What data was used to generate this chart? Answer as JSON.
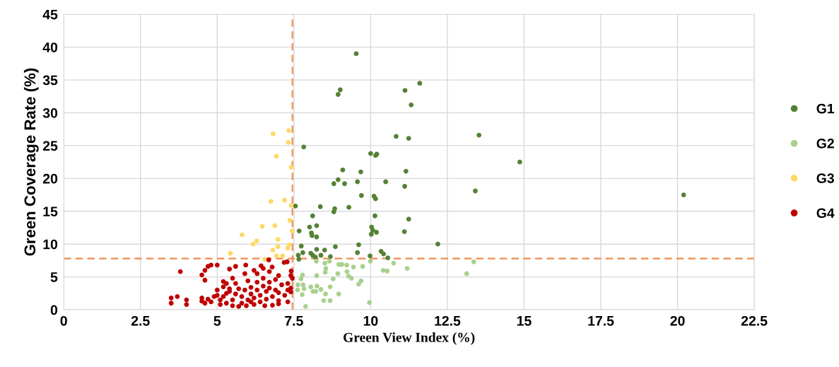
{
  "chart_data": {
    "type": "scatter",
    "xlabel": "Green View Index (%)",
    "ylabel": "Green Coverage Rate (%)",
    "xlim": [
      0,
      22.5
    ],
    "ylim": [
      0,
      45
    ],
    "xticks": [
      0,
      2.5,
      5,
      7.5,
      10,
      12.5,
      15,
      17.5,
      20,
      22.5
    ],
    "yticks": [
      0,
      5,
      10,
      15,
      20,
      25,
      30,
      35,
      40,
      45
    ],
    "grid": true,
    "legend": "right",
    "marker": "circle",
    "ref_lines": [
      {
        "axis": "x",
        "value": 7.45,
        "color": "#f08a4b",
        "line_style": "dashed"
      },
      {
        "axis": "y",
        "value": 7.8,
        "color": "#f08a4b",
        "line_style": "dashed"
      }
    ],
    "series": [
      {
        "name": "G1",
        "color": "#548235",
        "x": [
          9.53,
          9.01,
          8.94,
          11.12,
          11.6,
          11.32,
          13.53,
          14.86,
          13.41,
          20.2,
          12.19,
          7.82,
          10.83,
          11.24,
          10.0,
          10.2,
          10.16,
          9.09,
          9.68,
          11.15,
          8.94,
          8.8,
          9.15,
          9.57,
          10.49,
          11.11,
          9.7,
          10.11,
          10.16,
          7.55,
          8.36,
          8.83,
          8.8,
          9.29,
          8.11,
          10.14,
          11.24,
          8.01,
          8.24,
          7.67,
          8.07,
          8.09,
          8.24,
          10.03,
          10.07,
          10.19,
          10.02,
          11.1,
          7.74,
          8.85,
          9.61,
          9.57,
          7.79,
          8.05,
          8.24,
          8.5,
          7.64,
          8.11,
          8.38,
          8.69,
          7.66,
          9.98,
          10.34,
          10.42,
          10.56,
          8.2
        ],
        "values": [
          39.0,
          33.5,
          32.8,
          33.4,
          34.5,
          31.2,
          26.6,
          22.5,
          18.1,
          17.5,
          10.0,
          24.8,
          26.4,
          26.1,
          23.8,
          23.7,
          23.5,
          21.3,
          21.0,
          21.1,
          19.8,
          19.2,
          19.2,
          19.5,
          19.5,
          18.8,
          17.4,
          17.3,
          16.9,
          15.8,
          15.7,
          15.4,
          14.9,
          15.6,
          14.3,
          14.3,
          13.8,
          12.6,
          12.8,
          12.0,
          11.7,
          11.3,
          11.1,
          12.6,
          12.1,
          11.8,
          11.5,
          11.9,
          9.7,
          9.6,
          9.9,
          8.7,
          8.7,
          8.6,
          9.2,
          9.1,
          8.3,
          8.3,
          8.3,
          8.1,
          7.7,
          8.2,
          8.9,
          8.5,
          7.9,
          8.0
        ]
      },
      {
        "name": "G2",
        "color": "#a9d18e",
        "x": [
          13.36,
          8.23,
          8.51,
          8.66,
          8.96,
          9.06,
          9.22,
          9.44,
          9.74,
          9.99,
          10.75,
          11.19,
          10.41,
          10.54,
          8.54,
          8.52,
          9.23,
          8.93,
          9.28,
          9.37,
          8.24,
          7.78,
          7.73,
          8.78,
          9.69,
          9.61,
          7.63,
          7.8,
          7.62,
          7.83,
          8.05,
          8.25,
          8.38,
          8.12,
          8.21,
          8.68,
          8.53,
          8.96,
          7.77,
          8.47,
          8.68,
          7.88,
          9.96,
          13.13
        ],
        "values": [
          7.3,
          7.4,
          7.1,
          7.4,
          6.9,
          6.9,
          6.8,
          6.5,
          6.6,
          7.4,
          7.1,
          6.3,
          6.0,
          5.9,
          6.3,
          5.7,
          5.8,
          5.5,
          5.1,
          4.8,
          5.2,
          5.3,
          4.7,
          4.7,
          4.4,
          3.9,
          3.8,
          3.8,
          3.0,
          3.2,
          3.5,
          3.6,
          3.1,
          2.8,
          2.8,
          3.5,
          2.4,
          2.4,
          2.3,
          1.4,
          1.4,
          0.5,
          1.1,
          5.5
        ]
      },
      {
        "name": "G3",
        "color": "#ffd966",
        "x": [
          7.33,
          6.82,
          7.32,
          6.93,
          7.41,
          6.75,
          7.19,
          7.41,
          7.37,
          6.47,
          6.88,
          7.44,
          5.81,
          6.29,
          6.17,
          6.98,
          6.98,
          7.35,
          7.3,
          6.81,
          6.93,
          7.13,
          6.55,
          5.43
        ],
        "values": [
          27.3,
          26.8,
          25.5,
          23.4,
          21.7,
          16.5,
          16.7,
          15.9,
          13.6,
          12.7,
          12.8,
          12.0,
          11.4,
          10.5,
          10.0,
          10.7,
          9.6,
          9.9,
          9.4,
          9.1,
          8.2,
          8.2,
          7.7,
          8.6
        ]
      },
      {
        "name": "G4",
        "color": "#c00000",
        "x": [
          3.5,
          3.5,
          3.7,
          3.8,
          4.0,
          4.0,
          4.5,
          4.5,
          4.6,
          4.6,
          4.6,
          4.7,
          4.7,
          4.8,
          4.8,
          5.0,
          5.0,
          5.0,
          5.1,
          5.1,
          5.2,
          5.2,
          5.2,
          5.3,
          5.3,
          5.4,
          5.4,
          5.4,
          5.5,
          5.5,
          5.5,
          5.6,
          5.6,
          5.7,
          5.7,
          5.8,
          5.8,
          5.9,
          5.9,
          5.93,
          6.0,
          6.0,
          6.1,
          6.1,
          6.2,
          6.2,
          6.3,
          6.3,
          6.3,
          6.4,
          6.4,
          6.43,
          6.5,
          6.5,
          6.5,
          6.6,
          6.6,
          6.68,
          6.7,
          6.7,
          6.7,
          6.79,
          6.8,
          6.8,
          6.9,
          6.9,
          7.0,
          7.0,
          7.0,
          7.1,
          7.18,
          7.28,
          7.2,
          7.3,
          7.3,
          7.3,
          7.41,
          7.4,
          7.4,
          7.4,
          7.45,
          6.55,
          5.95,
          4.5,
          5.6,
          6.2,
          7.0,
          6.1,
          5.3,
          4.9
        ],
        "values": [
          1.8,
          1.0,
          2.0,
          5.8,
          1.5,
          0.8,
          1.3,
          1.8,
          1.0,
          4.5,
          6.0,
          6.6,
          1.6,
          6.8,
          1.2,
          6.8,
          2.2,
          3.0,
          1.5,
          0.8,
          4.3,
          3.5,
          2.0,
          4.0,
          1.0,
          6.2,
          2.8,
          3.2,
          4.8,
          1.5,
          0.6,
          2.4,
          4.0,
          0.5,
          3.2,
          2.0,
          1.0,
          5.5,
          3.0,
          6.8,
          1.5,
          4.4,
          2.4,
          3.4,
          0.8,
          1.8,
          5.5,
          3.0,
          4.2,
          2.2,
          1.2,
          6.7,
          6.3,
          3.6,
          4.8,
          2.8,
          1.6,
          7.6,
          5.8,
          4.2,
          3.3,
          6.5,
          0.7,
          2.0,
          4.6,
          3.0,
          1.4,
          2.6,
          5.2,
          3.8,
          7.2,
          7.3,
          2.2,
          4.0,
          3.0,
          1.2,
          5.9,
          3.3,
          5.2,
          2.7,
          4.8,
          0.6,
          0.6,
          5.3,
          6.6,
          6.0,
          0.9,
          1.2,
          2.5,
          2.0
        ]
      }
    ]
  }
}
